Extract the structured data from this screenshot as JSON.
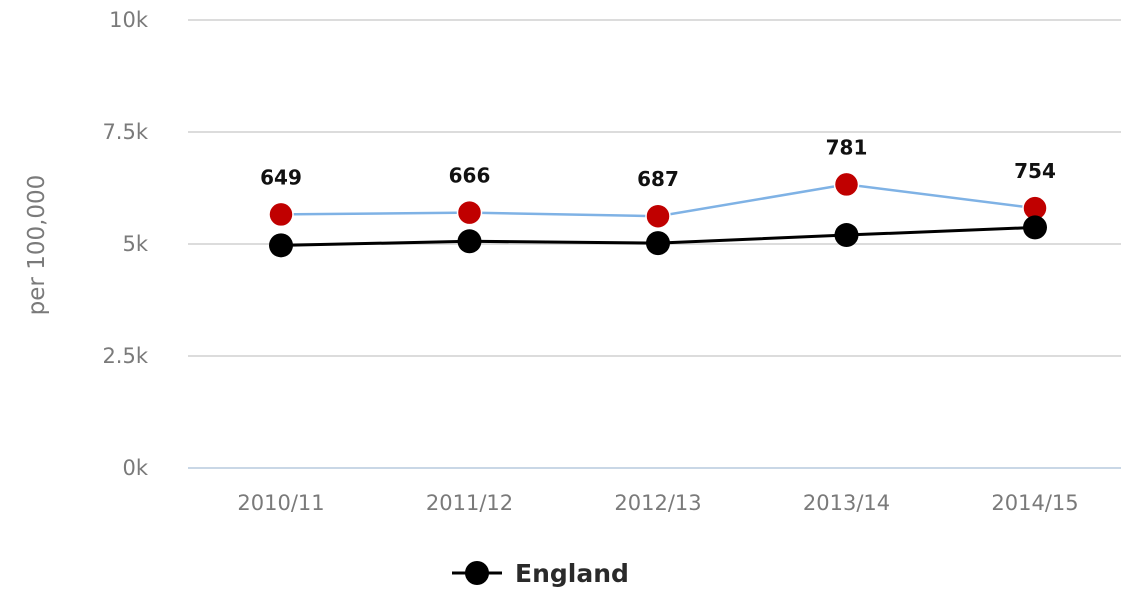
{
  "chart_data": {
    "type": "line",
    "ylabel": "per 100,000",
    "ylim": [
      0,
      10000
    ],
    "y_ticks": [
      0,
      2500,
      5000,
      7500,
      10000
    ],
    "y_tick_labels": [
      "0k",
      "2.5k",
      "5k",
      "7.5k",
      "10k"
    ],
    "categories": [
      "2010/11",
      "2011/12",
      "2012/13",
      "2013/14",
      "2014/15"
    ],
    "grid": true,
    "legend_position": "bottom-center",
    "series": [
      {
        "values": [
          5660,
          5700,
          5620,
          6330,
          5800
        ],
        "data_labels": [
          "649",
          "666",
          "687",
          "781",
          "754"
        ],
        "line_color": "#7fb2e5",
        "marker_color": "#c00000"
      },
      {
        "name": "England",
        "values": [
          4970,
          5060,
          5020,
          5200,
          5370
        ],
        "line_color": "#000000",
        "marker_color": "#000000"
      }
    ]
  }
}
